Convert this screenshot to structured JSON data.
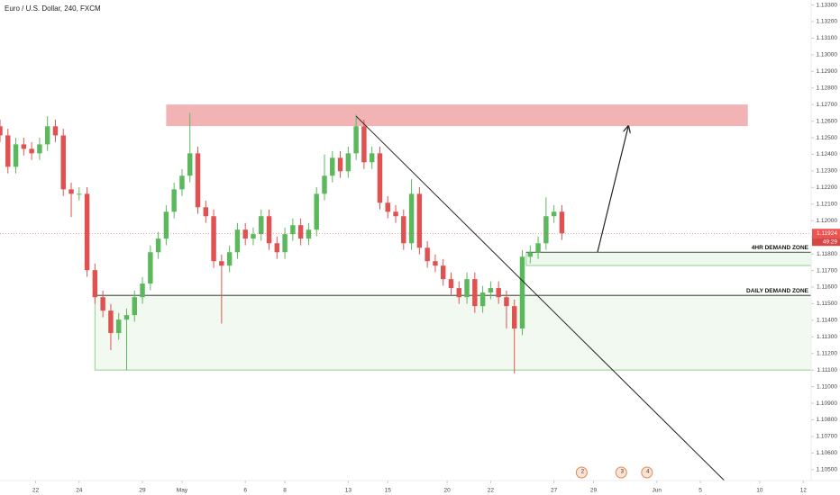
{
  "chart_data": {
    "type": "candlestick",
    "title": "Euro / U.S. Dollar, 240, FXCM",
    "up_color": "#5cb85c",
    "down_color": "#e05252",
    "x": [
      0,
      2,
      4,
      6,
      8,
      10,
      12,
      14,
      16,
      18,
      20,
      22,
      24,
      26,
      28,
      30,
      32,
      34,
      36,
      38,
      40,
      42,
      44,
      46,
      48,
      50,
      52,
      54,
      56,
      58,
      60,
      62,
      64,
      66,
      68,
      70,
      72,
      74,
      76,
      78,
      80,
      82,
      84,
      86,
      88,
      90,
      92,
      94,
      96,
      98,
      100,
      102,
      104,
      106,
      108,
      110,
      112,
      114,
      116,
      118,
      120,
      122,
      124,
      126,
      128,
      130,
      132,
      134,
      136,
      138,
      140,
      142
    ],
    "open": [
      1.12569,
      1.12514,
      1.12325,
      1.1246,
      1.12433,
      1.12406,
      1.1246,
      1.12569,
      1.12514,
      1.12189,
      1.12162,
      1.12162,
      1.11702,
      1.11539,
      1.11458,
      1.11323,
      1.11404,
      1.11431,
      1.11539,
      1.11621,
      1.1181,
      1.11892,
      1.12054,
      1.12189,
      1.12271,
      1.12406,
      1.12081,
      1.12027,
      1.11756,
      1.11729,
      1.1181,
      1.11946,
      1.11892,
      1.11919,
      1.12027,
      1.11864,
      1.1181,
      1.11919,
      1.11973,
      1.11892,
      1.11946,
      1.12162,
      1.12271,
      1.12379,
      1.12298,
      1.12406,
      1.12569,
      1.12352,
      1.12406,
      1.12108,
      1.12054,
      1.12027,
      1.11864,
      1.12162,
      1.11837,
      1.11756,
      1.11729,
      1.11648,
      1.11594,
      1.11539,
      1.11648,
      1.11485,
      1.11567,
      1.11594,
      1.11539,
      1.11485,
      1.1135,
      1.11783,
      1.1181,
      1.11864,
      1.12027,
      1.12054
    ],
    "high": [
      1.12609,
      1.12554,
      1.125,
      1.125,
      1.12473,
      1.125,
      1.1263,
      1.12609,
      1.12554,
      1.12229,
      1.12202,
      1.12202,
      1.11742,
      1.11579,
      1.11498,
      1.11444,
      1.11471,
      1.11579,
      1.11661,
      1.1185,
      1.11932,
      1.12094,
      1.12229,
      1.12311,
      1.1265,
      1.12446,
      1.12121,
      1.12067,
      1.11796,
      1.1185,
      1.11986,
      1.11986,
      1.11959,
      1.12067,
      1.12067,
      1.11904,
      1.11959,
      1.12013,
      1.12013,
      1.11986,
      1.12202,
      1.124,
      1.12419,
      1.12419,
      1.12446,
      1.1264,
      1.12609,
      1.12446,
      1.12446,
      1.12148,
      1.12094,
      1.12067,
      1.1225,
      1.12202,
      1.11877,
      1.11796,
      1.11769,
      1.11688,
      1.11634,
      1.11688,
      1.11688,
      1.11607,
      1.11634,
      1.11634,
      1.11579,
      1.11525,
      1.11823,
      1.1185,
      1.11904,
      1.1214,
      1.12094,
      1.12094
    ],
    "low": [
      1.12474,
      1.12285,
      1.12285,
      1.12393,
      1.12366,
      1.12366,
      1.1242,
      1.12474,
      1.12149,
      1.12022,
      1.12122,
      1.11662,
      1.11499,
      1.11418,
      1.1122,
      1.11283,
      1.111,
      1.11391,
      1.11499,
      1.11581,
      1.1177,
      1.11852,
      1.12014,
      1.12149,
      1.12231,
      1.12041,
      1.11987,
      1.11716,
      1.1138,
      1.11689,
      1.1177,
      1.11852,
      1.11852,
      1.11879,
      1.11824,
      1.1177,
      1.1177,
      1.11879,
      1.11852,
      1.11852,
      1.11906,
      1.12122,
      1.12231,
      1.12258,
      1.12258,
      1.12366,
      1.12312,
      1.12312,
      1.12068,
      1.12014,
      1.11987,
      1.11824,
      1.11824,
      1.11797,
      1.11716,
      1.11689,
      1.11608,
      1.11554,
      1.11499,
      1.11499,
      1.11445,
      1.11445,
      1.11527,
      1.11499,
      1.1135,
      1.1108,
      1.1131,
      1.11743,
      1.1177,
      1.11824,
      1.11987,
      1.11884
    ],
    "close": [
      1.12514,
      1.12325,
      1.1246,
      1.12433,
      1.12406,
      1.1246,
      1.12569,
      1.12514,
      1.12189,
      1.12162,
      1.12162,
      1.11702,
      1.11539,
      1.11458,
      1.11323,
      1.11404,
      1.11431,
      1.11539,
      1.11621,
      1.1181,
      1.11892,
      1.12054,
      1.12189,
      1.12271,
      1.12406,
      1.12081,
      1.12027,
      1.11756,
      1.11729,
      1.1181,
      1.11946,
      1.11892,
      1.11919,
      1.12027,
      1.11864,
      1.1181,
      1.11919,
      1.11973,
      1.11892,
      1.11946,
      1.12162,
      1.12271,
      1.12379,
      1.12298,
      1.12406,
      1.12569,
      1.12352,
      1.12406,
      1.12108,
      1.12054,
      1.12027,
      1.11864,
      1.12162,
      1.11837,
      1.11756,
      1.11729,
      1.11648,
      1.11594,
      1.11539,
      1.11648,
      1.11485,
      1.11567,
      1.11594,
      1.11539,
      1.11485,
      1.1135,
      1.11783,
      1.1181,
      1.11864,
      1.12027,
      1.12054,
      1.11924
    ],
    "xlim": [
      0,
      205
    ],
    "ylim": [
      1.1045,
      1.1333
    ],
    "xticks": [
      {
        "value": 9,
        "label": "22"
      },
      {
        "value": 20,
        "label": "24"
      },
      {
        "value": 36,
        "label": "29"
      },
      {
        "value": 46,
        "label": "May"
      },
      {
        "value": 62,
        "label": "6"
      },
      {
        "value": 72,
        "label": "8"
      },
      {
        "value": 88,
        "label": "13"
      },
      {
        "value": 98,
        "label": "15"
      },
      {
        "value": 113,
        "label": "20"
      },
      {
        "value": 124,
        "label": "22"
      },
      {
        "value": 140,
        "label": "27"
      },
      {
        "value": 150,
        "label": "29"
      },
      {
        "value": 166,
        "label": "Jun"
      },
      {
        "value": 177,
        "label": "5"
      },
      {
        "value": 192,
        "label": "10"
      },
      {
        "value": 203,
        "label": "12"
      }
    ],
    "yticks": [
      {
        "value": 1.105,
        "label": "1.10500"
      },
      {
        "value": 1.106,
        "label": "1.10600"
      },
      {
        "value": 1.107,
        "label": "1.10700"
      },
      {
        "value": 1.108,
        "label": "1.10800"
      },
      {
        "value": 1.109,
        "label": "1.10900"
      },
      {
        "value": 1.11,
        "label": "1.11000"
      },
      {
        "value": 1.111,
        "label": "1.11100"
      },
      {
        "value": 1.112,
        "label": "1.11200"
      },
      {
        "value": 1.113,
        "label": "1.11300"
      },
      {
        "value": 1.114,
        "label": "1.11400"
      },
      {
        "value": 1.115,
        "label": "1.11500"
      },
      {
        "value": 1.116,
        "label": "1.11600"
      },
      {
        "value": 1.117,
        "label": "1.11700"
      },
      {
        "value": 1.118,
        "label": "1.11800"
      },
      {
        "value": 1.119,
        "label": "1.11900"
      },
      {
        "value": 1.12,
        "label": "1.12000"
      },
      {
        "value": 1.121,
        "label": "1.12100"
      },
      {
        "value": 1.122,
        "label": "1.12200"
      },
      {
        "value": 1.123,
        "label": "1.12300"
      },
      {
        "value": 1.124,
        "label": "1.12400"
      },
      {
        "value": 1.125,
        "label": "1.12500"
      },
      {
        "value": 1.126,
        "label": "1.12600"
      },
      {
        "value": 1.127,
        "label": "1.12700"
      },
      {
        "value": 1.128,
        "label": "1.12800"
      },
      {
        "value": 1.129,
        "label": "1.12900"
      },
      {
        "value": 1.13,
        "label": "1.13000"
      },
      {
        "value": 1.131,
        "label": "1.13100"
      },
      {
        "value": 1.132,
        "label": "1.13200"
      },
      {
        "value": 1.133,
        "label": "1.13300"
      }
    ],
    "zones": [
      {
        "low": 1.1257,
        "high": 1.127,
        "x0": 42,
        "x1": 189,
        "color": "#f2b3b5"
      },
      {
        "label": "4HR DEMAND ZONE",
        "low": 1.1173,
        "high": 1.1181,
        "x0": 133,
        "x1": 205,
        "color": "#eef8ee"
      },
      {
        "label": "DAILY DEMAND ZONE",
        "low": 1.111,
        "high": 1.1155,
        "x0": 24,
        "x1": 205,
        "color": "#f1f9f1"
      }
    ],
    "lines": [
      {
        "x": [
          90,
          184.5
        ],
        "y": [
          1.1263,
          1.104
        ]
      }
    ],
    "arrows": [
      {
        "x": [
          151,
          158.8
        ],
        "y": [
          1.1181,
          1.1257
        ]
      }
    ],
    "events": [
      {
        "x": 147,
        "label": "2"
      },
      {
        "x": 157,
        "label": "3"
      },
      {
        "x": 163.5,
        "label": "4"
      }
    ],
    "last_price": 1.11924,
    "countdown": "49:29"
  }
}
